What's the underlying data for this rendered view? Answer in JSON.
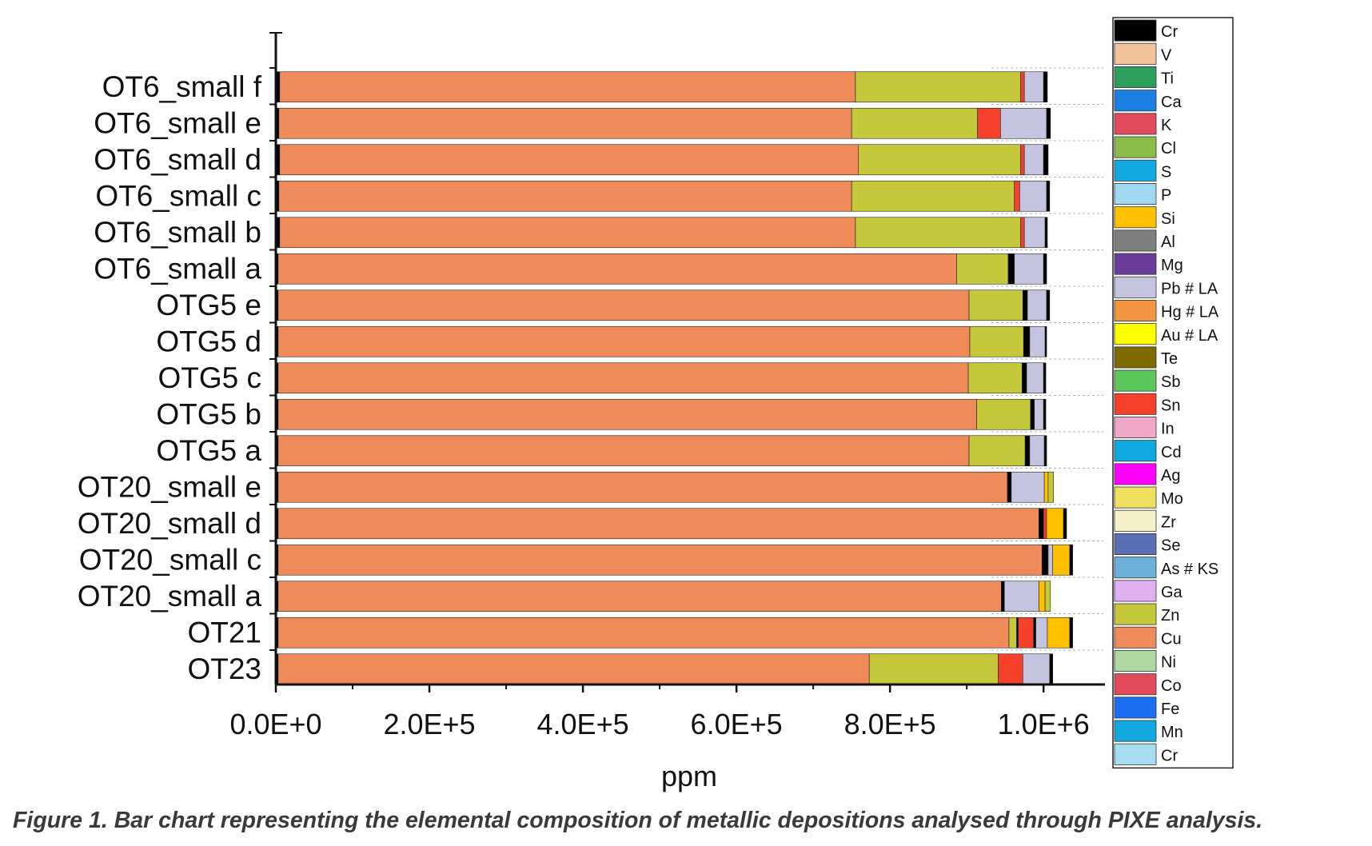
{
  "caption": "Figure 1. Bar chart representing the elemental composition of metallic depositions analysed through PIXE analysis.",
  "chart_data": {
    "type": "bar",
    "orientation": "horizontal",
    "stacked": true,
    "xlabel": "ppm",
    "ylabel": "",
    "xlim": [
      0,
      1080000
    ],
    "x_ticks": [
      0,
      200000,
      400000,
      600000,
      800000,
      1000000
    ],
    "x_tick_labels": [
      "0.0E+0",
      "2.0E+5",
      "4.0E+5",
      "6.0E+5",
      "8.0E+5",
      "1.0E+6"
    ],
    "grid": "dashed lines at category edges",
    "legend_position": "right",
    "categories": [
      "OT6_small f",
      "OT6_small e",
      "OT6_small d",
      "OT6_small c",
      "OT6_small b",
      "OT6_small a",
      "OTG5 e",
      "OTG5 d",
      "OTG5 c",
      "OTG5 b",
      "OTG5 a",
      "OT20_small e",
      "OT20_small d",
      "OT20_small c",
      "OT20_small a",
      "OT21",
      "OT23"
    ],
    "legend": [
      {
        "name": "Cr",
        "color": "#000000"
      },
      {
        "name": "V",
        "color": "#f2c49b"
      },
      {
        "name": "Ti",
        "color": "#2ca05a"
      },
      {
        "name": "Ca",
        "color": "#1a7fe0"
      },
      {
        "name": "K",
        "color": "#e04a5a"
      },
      {
        "name": "Cl",
        "color": "#8cbd4a"
      },
      {
        "name": "S",
        "color": "#12a8e0"
      },
      {
        "name": "P",
        "color": "#9fd8ef"
      },
      {
        "name": "Si",
        "color": "#ffc000"
      },
      {
        "name": "Al",
        "color": "#7f7f7f"
      },
      {
        "name": "Mg",
        "color": "#6a3d9a"
      },
      {
        "name": "Pb # LA",
        "color": "#c4c4e0"
      },
      {
        "name": "Hg # LA",
        "color": "#f29442"
      },
      {
        "name": "Au # LA",
        "color": "#ffff00"
      },
      {
        "name": "Te",
        "color": "#7f6a00"
      },
      {
        "name": "Sb",
        "color": "#5cc85c"
      },
      {
        "name": "Sn",
        "color": "#f5402a"
      },
      {
        "name": "In",
        "color": "#f0a8c8"
      },
      {
        "name": "Cd",
        "color": "#0fa8e0"
      },
      {
        "name": "Ag",
        "color": "#ff00ff"
      },
      {
        "name": "Mo",
        "color": "#f0e060"
      },
      {
        "name": "Zr",
        "color": "#f5f0c8"
      },
      {
        "name": "Se",
        "color": "#5b6fb5"
      },
      {
        "name": "As # KS",
        "color": "#6ab0d8"
      },
      {
        "name": "Ga",
        "color": "#e0b0f0"
      },
      {
        "name": "Zn",
        "color": "#c5c83a"
      },
      {
        "name": "Cu",
        "color": "#ef8a5a"
      },
      {
        "name": "Ni",
        "color": "#b0d8a0"
      },
      {
        "name": "Co",
        "color": "#e04a5a"
      },
      {
        "name": "Fe",
        "color": "#1a6ef0"
      },
      {
        "name": "Mn",
        "color": "#12a8e0"
      },
      {
        "name": "Cr",
        "color": "#a8dcf0"
      }
    ],
    "bars": [
      {
        "category": "OT6_small f",
        "segments": [
          {
            "element": "Cr",
            "value": 5000
          },
          {
            "element": "Cu",
            "value": 750000
          },
          {
            "element": "Zn",
            "value": 215000
          },
          {
            "element": "Sn",
            "value": 5000
          },
          {
            "element": "Pb # LA",
            "value": 25000
          },
          {
            "element": "Cr",
            "value": 5000
          }
        ]
      },
      {
        "category": "OT6_small e",
        "segments": [
          {
            "element": "Cr",
            "value": 4000
          },
          {
            "element": "Cu",
            "value": 746000
          },
          {
            "element": "Zn",
            "value": 164000
          },
          {
            "element": "Sn",
            "value": 30000
          },
          {
            "element": "Pb # LA",
            "value": 60000
          },
          {
            "element": "Cr",
            "value": 5000
          }
        ]
      },
      {
        "category": "OT6_small d",
        "segments": [
          {
            "element": "Cr",
            "value": 5000
          },
          {
            "element": "Cu",
            "value": 754000
          },
          {
            "element": "Zn",
            "value": 211000
          },
          {
            "element": "Sn",
            "value": 5000
          },
          {
            "element": "Pb # LA",
            "value": 25000
          },
          {
            "element": "Cr",
            "value": 6000
          }
        ]
      },
      {
        "category": "OT6_small c",
        "segments": [
          {
            "element": "Cr",
            "value": 4000
          },
          {
            "element": "Cu",
            "value": 746000
          },
          {
            "element": "Zn",
            "value": 212000
          },
          {
            "element": "Sn",
            "value": 7000
          },
          {
            "element": "Pb # LA",
            "value": 35000
          },
          {
            "element": "Cr",
            "value": 4000
          }
        ]
      },
      {
        "category": "OT6_small b",
        "segments": [
          {
            "element": "Cr",
            "value": 5000
          },
          {
            "element": "Cu",
            "value": 750000
          },
          {
            "element": "Zn",
            "value": 215000
          },
          {
            "element": "Sn",
            "value": 5000
          },
          {
            "element": "Pb # LA",
            "value": 27000
          },
          {
            "element": "Cr",
            "value": 3000
          }
        ]
      },
      {
        "category": "OT6_small a",
        "segments": [
          {
            "element": "Cr",
            "value": 3000
          },
          {
            "element": "Cu",
            "value": 884000
          },
          {
            "element": "Zn",
            "value": 67000
          },
          {
            "element": "Cr",
            "value": 8000
          },
          {
            "element": "Pb # LA",
            "value": 38000
          },
          {
            "element": "Cr",
            "value": 4000
          }
        ]
      },
      {
        "category": "OTG5 e",
        "segments": [
          {
            "element": "Cr",
            "value": 3000
          },
          {
            "element": "Cu",
            "value": 900000
          },
          {
            "element": "Zn",
            "value": 70000
          },
          {
            "element": "Cr",
            "value": 6000
          },
          {
            "element": "Pb # LA",
            "value": 25000
          },
          {
            "element": "Cr",
            "value": 4000
          }
        ]
      },
      {
        "category": "OTG5 d",
        "segments": [
          {
            "element": "Cr",
            "value": 3000
          },
          {
            "element": "Cu",
            "value": 901000
          },
          {
            "element": "Zn",
            "value": 70000
          },
          {
            "element": "Cr",
            "value": 8000
          },
          {
            "element": "Pb # LA",
            "value": 20000
          },
          {
            "element": "Cr",
            "value": 2000
          }
        ]
      },
      {
        "category": "OTG5 c",
        "segments": [
          {
            "element": "Cr",
            "value": 3000
          },
          {
            "element": "Cu",
            "value": 899000
          },
          {
            "element": "Zn",
            "value": 70000
          },
          {
            "element": "Cr",
            "value": 6000
          },
          {
            "element": "Pb # LA",
            "value": 22000
          },
          {
            "element": "Cr",
            "value": 3000
          }
        ]
      },
      {
        "category": "OTG5 b",
        "segments": [
          {
            "element": "Cr",
            "value": 3000
          },
          {
            "element": "Cu",
            "value": 910000
          },
          {
            "element": "Zn",
            "value": 70000
          },
          {
            "element": "Cr",
            "value": 5000
          },
          {
            "element": "Pb # LA",
            "value": 12000
          },
          {
            "element": "Cr",
            "value": 3000
          }
        ]
      },
      {
        "category": "OTG5 a",
        "segments": [
          {
            "element": "Cr",
            "value": 3000
          },
          {
            "element": "Cu",
            "value": 900000
          },
          {
            "element": "Zn",
            "value": 73000
          },
          {
            "element": "Cr",
            "value": 6000
          },
          {
            "element": "Pb # LA",
            "value": 19000
          },
          {
            "element": "Cr",
            "value": 3000
          }
        ]
      },
      {
        "category": "OT20_small e",
        "segments": [
          {
            "element": "Cr",
            "value": 3000
          },
          {
            "element": "Cu",
            "value": 950000
          },
          {
            "element": "Cr",
            "value": 5000
          },
          {
            "element": "Pb # LA",
            "value": 43000
          },
          {
            "element": "Si",
            "value": 5000
          },
          {
            "element": "Zn",
            "value": 7000
          }
        ]
      },
      {
        "category": "OT20_small d",
        "segments": [
          {
            "element": "Cr",
            "value": 3000
          },
          {
            "element": "Cu",
            "value": 991000
          },
          {
            "element": "Cr",
            "value": 6000
          },
          {
            "element": "Sn",
            "value": 4000
          },
          {
            "element": "Si",
            "value": 22000
          },
          {
            "element": "Cr",
            "value": 4000
          }
        ]
      },
      {
        "category": "OT20_small c",
        "segments": [
          {
            "element": "Cr",
            "value": 3000
          },
          {
            "element": "Cu",
            "value": 995000
          },
          {
            "element": "Cr",
            "value": 8000
          },
          {
            "element": "Pb # LA",
            "value": 6000
          },
          {
            "element": "Si",
            "value": 22000
          },
          {
            "element": "Cr",
            "value": 4000
          }
        ]
      },
      {
        "category": "OT20_small a",
        "segments": [
          {
            "element": "Cr",
            "value": 3000
          },
          {
            "element": "Cu",
            "value": 942000
          },
          {
            "element": "Cr",
            "value": 4000
          },
          {
            "element": "Pb # LA",
            "value": 45000
          },
          {
            "element": "Si",
            "value": 8000
          },
          {
            "element": "Zn",
            "value": 7000
          }
        ]
      },
      {
        "category": "OT21",
        "segments": [
          {
            "element": "Cr",
            "value": 3000
          },
          {
            "element": "Cu",
            "value": 952000
          },
          {
            "element": "Zn",
            "value": 10000
          },
          {
            "element": "Cr",
            "value": 2000
          },
          {
            "element": "Sn",
            "value": 20000
          },
          {
            "element": "Cr",
            "value": 3000
          },
          {
            "element": "Pb # LA",
            "value": 15000
          },
          {
            "element": "Si",
            "value": 29000
          },
          {
            "element": "Cr",
            "value": 4000
          }
        ]
      },
      {
        "category": "OT23",
        "segments": [
          {
            "element": "Cr",
            "value": 3000
          },
          {
            "element": "Cu",
            "value": 770000
          },
          {
            "element": "Zn",
            "value": 168000
          },
          {
            "element": "Sn",
            "value": 32000
          },
          {
            "element": "Pb # LA",
            "value": 35000
          },
          {
            "element": "Cr",
            "value": 4000
          }
        ]
      }
    ]
  }
}
